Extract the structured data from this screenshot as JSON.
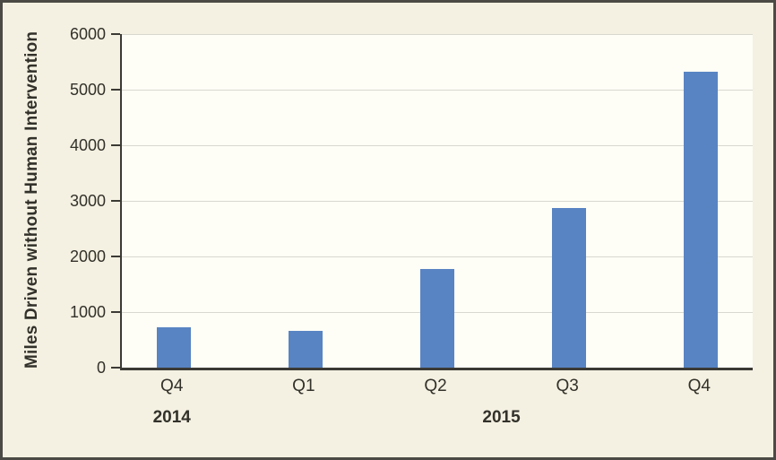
{
  "chart": {
    "y_axis_title": "Miles Driven without Human Intervention",
    "quarters": [
      "Q4",
      "Q1",
      "Q2",
      "Q3",
      "Q4"
    ],
    "values": [
      723,
      662,
      1770,
      2872,
      5318
    ],
    "year_groups": [
      {
        "label": "2014",
        "quarter_indexes": [
          0,
          0
        ]
      },
      {
        "label": "2015",
        "quarter_indexes": [
          1,
          4
        ]
      }
    ],
    "y_max": 6000,
    "y_tick_step": 1000,
    "colors": {
      "bar": "#5884c3",
      "background": "#f4f1e2",
      "plot_background": "#fefdf6",
      "gridline": "#d9d8d0",
      "axis": "#3b3a35",
      "text": "#32312a",
      "frame_border": "#4b4a44"
    }
  },
  "chart_data": {
    "type": "bar",
    "categories": [
      "Q4 2014",
      "Q1 2015",
      "Q2 2015",
      "Q3 2015",
      "Q4 2015"
    ],
    "values": [
      723,
      662,
      1770,
      2872,
      5318
    ],
    "title": "",
    "xlabel": "",
    "ylabel": "Miles Driven without Human Intervention",
    "ylim": [
      0,
      6000
    ],
    "y_tick_interval": 1000,
    "grid": true,
    "legend": false,
    "bar_color": "#5884c3"
  }
}
